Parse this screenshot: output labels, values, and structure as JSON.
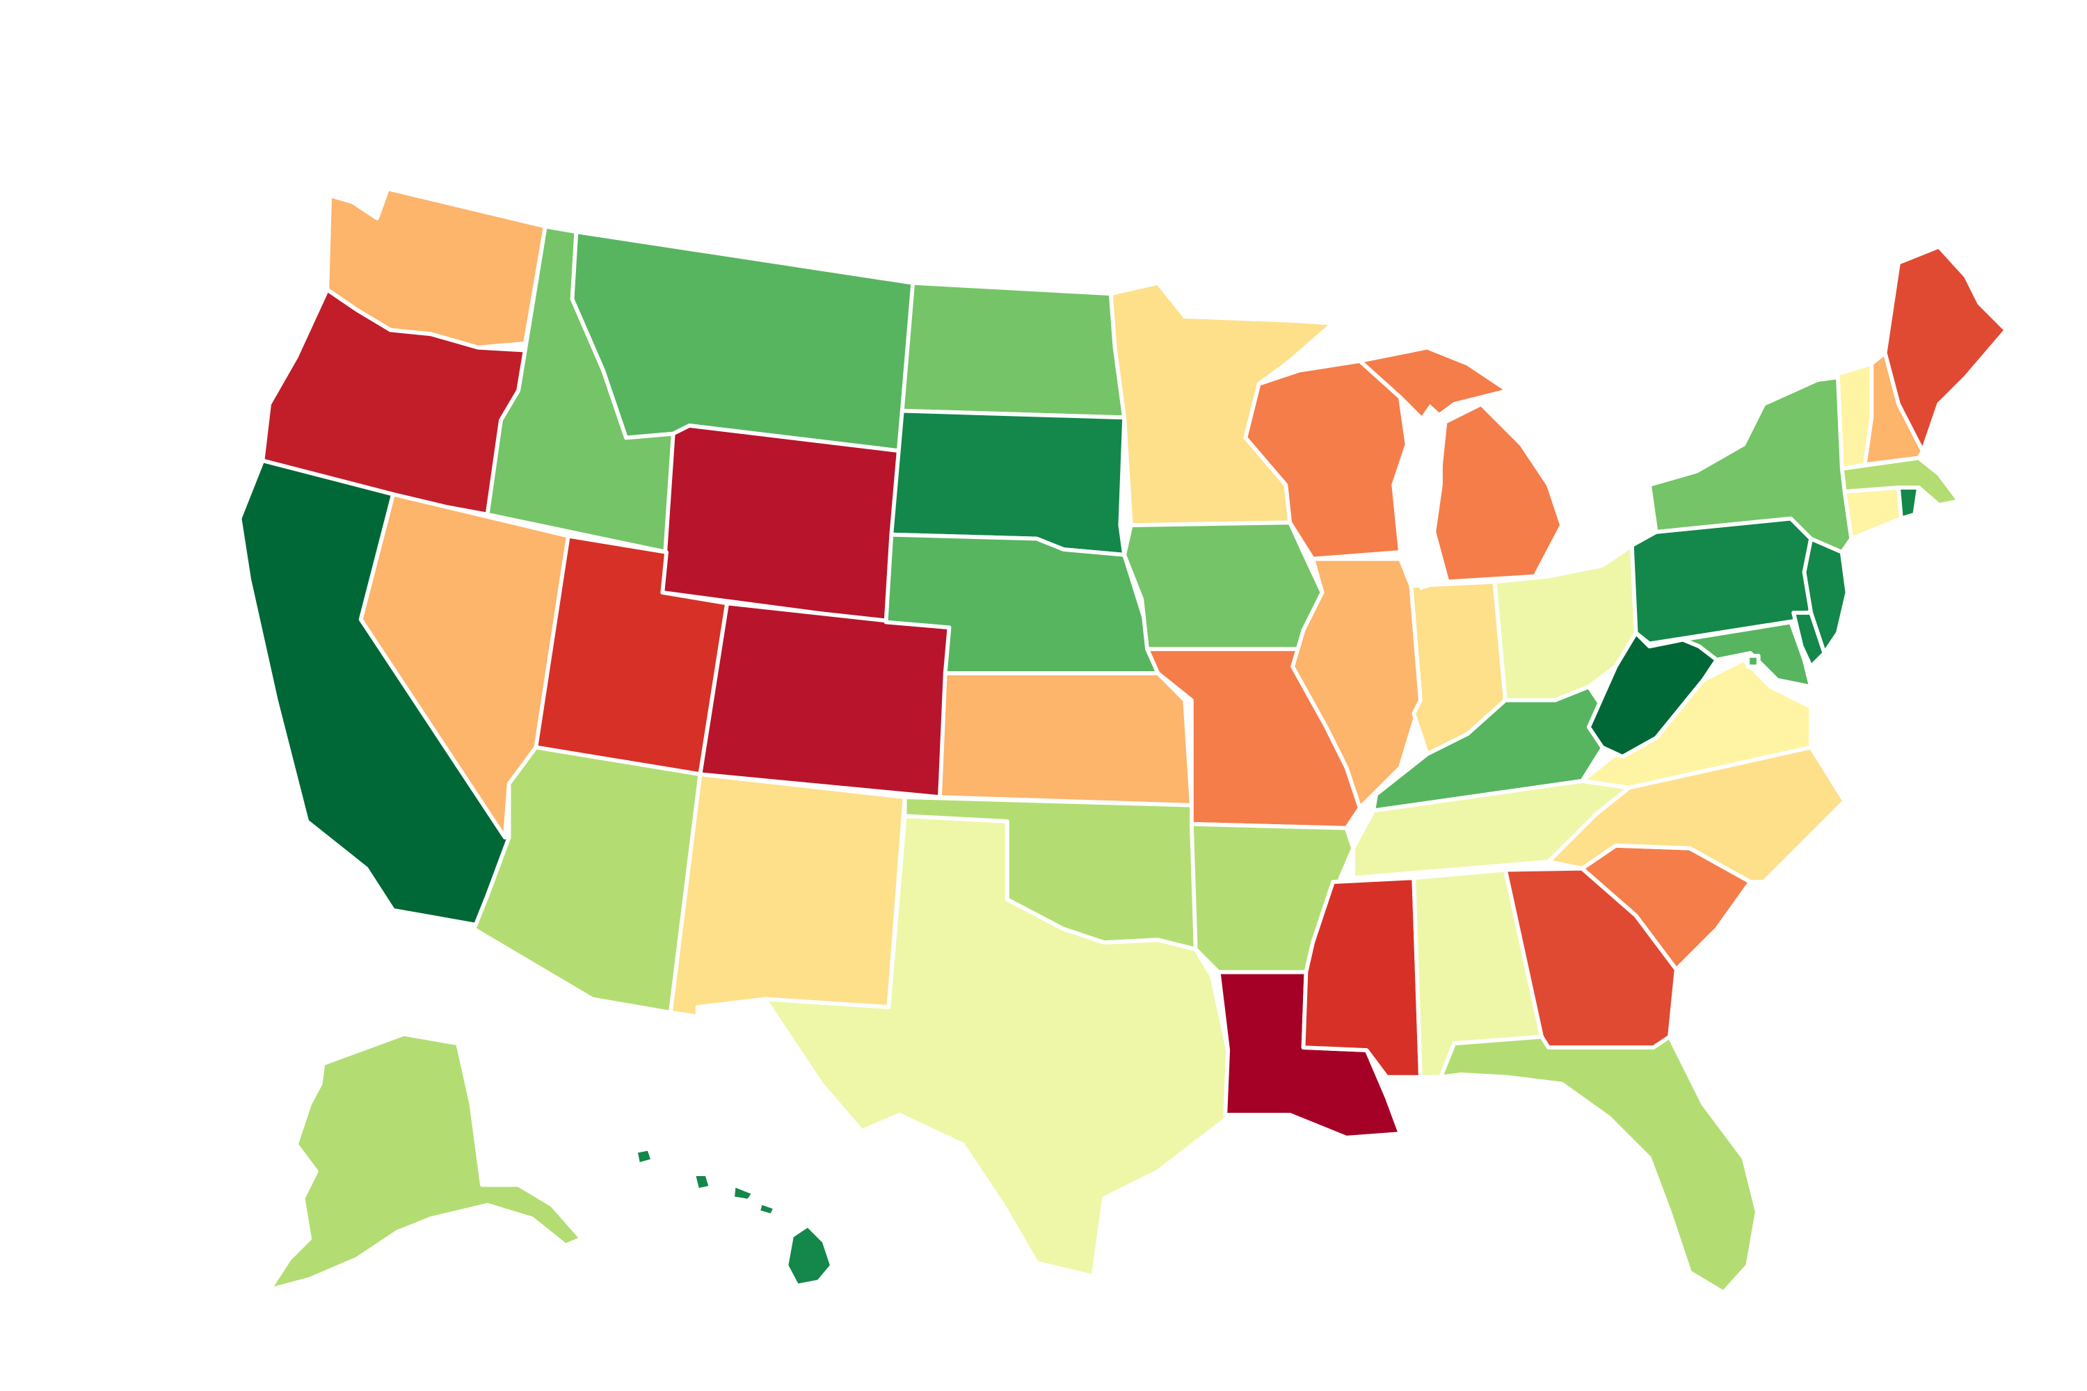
{
  "colors": {
    "background": "#ffffff",
    "border": "#ffffff",
    "scale": {
      "1": "#a50026",
      "2": "#b8142b",
      "3": "#c11e2a",
      "4": "#d73027",
      "5": "#e04a33",
      "6": "#f47d4a",
      "7": "#fdb46b",
      "8": "#fee08b",
      "9": "#fef4a3",
      "10": "#eef7a8",
      "11": "#b3dd72",
      "12": "#75c467",
      "13": "#57b560",
      "14": "#14874a",
      "15": "#006837"
    }
  },
  "states": [
    {
      "code": "WA",
      "level": 7
    },
    {
      "code": "OR",
      "level": 3
    },
    {
      "code": "CA",
      "level": 15
    },
    {
      "code": "NV",
      "level": 7
    },
    {
      "code": "ID",
      "level": 12
    },
    {
      "code": "MT",
      "level": 13
    },
    {
      "code": "WY",
      "level": 2
    },
    {
      "code": "UT",
      "level": 4
    },
    {
      "code": "AZ",
      "level": 11
    },
    {
      "code": "CO",
      "level": 2
    },
    {
      "code": "NM",
      "level": 8
    },
    {
      "code": "ND",
      "level": 12
    },
    {
      "code": "SD",
      "level": 14
    },
    {
      "code": "NE",
      "level": 13
    },
    {
      "code": "KS",
      "level": 7
    },
    {
      "code": "OK",
      "level": 11
    },
    {
      "code": "TX",
      "level": 10
    },
    {
      "code": "MN",
      "level": 8
    },
    {
      "code": "IA",
      "level": 12
    },
    {
      "code": "MO",
      "level": 6
    },
    {
      "code": "AR",
      "level": 11
    },
    {
      "code": "LA",
      "level": 1
    },
    {
      "code": "WI",
      "level": 6
    },
    {
      "code": "IL",
      "level": 7
    },
    {
      "code": "MI",
      "level": 6
    },
    {
      "code": "IN",
      "level": 8
    },
    {
      "code": "OH",
      "level": 10
    },
    {
      "code": "KY",
      "level": 13
    },
    {
      "code": "TN",
      "level": 10
    },
    {
      "code": "MS",
      "level": 4
    },
    {
      "code": "AL",
      "level": 10
    },
    {
      "code": "GA",
      "level": 5
    },
    {
      "code": "FL",
      "level": 11
    },
    {
      "code": "SC",
      "level": 6
    },
    {
      "code": "NC",
      "level": 8
    },
    {
      "code": "VA",
      "level": 9
    },
    {
      "code": "WV",
      "level": 15
    },
    {
      "code": "PA",
      "level": 14
    },
    {
      "code": "NY",
      "level": 12
    },
    {
      "code": "NJ",
      "level": 14
    },
    {
      "code": "DE",
      "level": 14
    },
    {
      "code": "MD",
      "level": 13
    },
    {
      "code": "DC",
      "level": 13
    },
    {
      "code": "CT",
      "level": 9
    },
    {
      "code": "RI",
      "level": 14
    },
    {
      "code": "MA",
      "level": 11
    },
    {
      "code": "VT",
      "level": 9
    },
    {
      "code": "NH",
      "level": 7
    },
    {
      "code": "ME",
      "level": 5
    },
    {
      "code": "AK",
      "level": 11
    },
    {
      "code": "HI",
      "level": 14
    }
  ]
}
